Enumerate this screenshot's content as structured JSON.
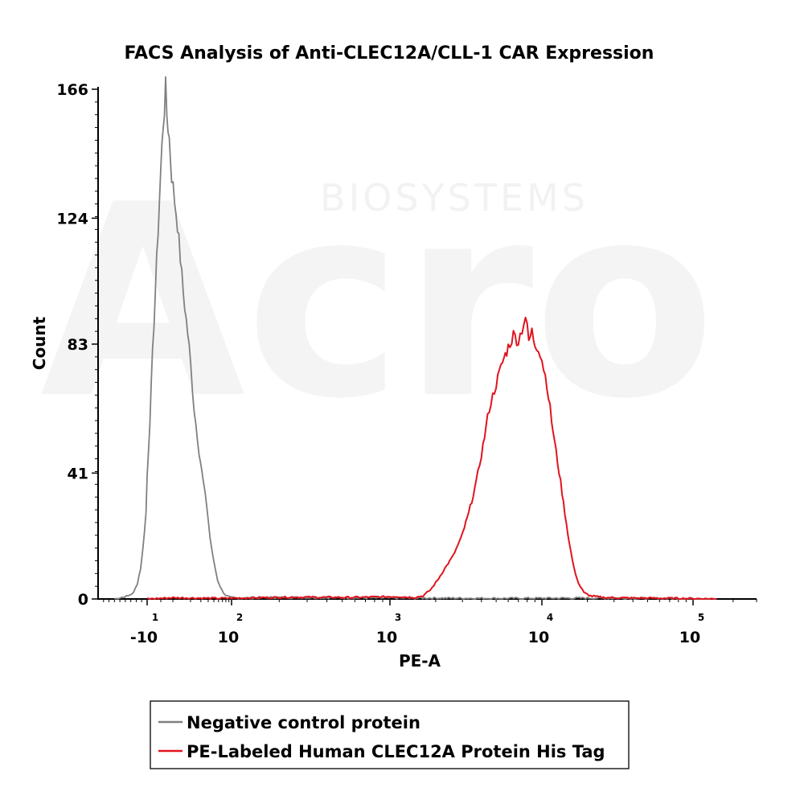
{
  "watermark": {
    "brand": "Acro",
    "sub": "BIOSYSTEMS"
  },
  "chart_data": {
    "type": "line",
    "title": "FACS Analysis of Anti-CLEC12A/CLL-1 CAR Expression",
    "xlabel": "PE-A",
    "ylabel": "Count",
    "x_scale": "biexponential",
    "x_ticks": [
      {
        "base": "-10",
        "exp": "1",
        "value": -10
      },
      {
        "base": "10",
        "exp": "2",
        "value": 100
      },
      {
        "base": "10",
        "exp": "3",
        "value": 1000
      },
      {
        "base": "10",
        "exp": "4",
        "value": 10000
      },
      {
        "base": "10",
        "exp": "5",
        "value": 100000
      }
    ],
    "y_ticks": [
      {
        "label": "0",
        "value": 0
      },
      {
        "label": "41",
        "value": 41
      },
      {
        "label": "83",
        "value": 83
      },
      {
        "label": "124",
        "value": 124
      },
      {
        "label": "166",
        "value": 166
      }
    ],
    "ylim": [
      0,
      166
    ],
    "grid": false,
    "legend_position": "bottom",
    "series": [
      {
        "name": "Negative control protein",
        "color": "#808080",
        "points": [
          [
            -70,
            0
          ],
          [
            -45,
            1
          ],
          [
            -35,
            2
          ],
          [
            -28,
            5
          ],
          [
            -22,
            10
          ],
          [
            -18,
            16
          ],
          [
            -15,
            22
          ],
          [
            -12,
            28
          ],
          [
            -10,
            40
          ],
          [
            -8,
            58
          ],
          [
            -6,
            80
          ],
          [
            -4,
            100
          ],
          [
            -2,
            120
          ],
          [
            0,
            140
          ],
          [
            2,
            155
          ],
          [
            3,
            160
          ],
          [
            4,
            166
          ],
          [
            5,
            158
          ],
          [
            7,
            150
          ],
          [
            9,
            138
          ],
          [
            12,
            122
          ],
          [
            15,
            100
          ],
          [
            19,
            82
          ],
          [
            23,
            62
          ],
          [
            28,
            48
          ],
          [
            33,
            38
          ],
          [
            38,
            30
          ],
          [
            43,
            20
          ],
          [
            50,
            12
          ],
          [
            58,
            6
          ],
          [
            68,
            3
          ],
          [
            80,
            1
          ],
          [
            95,
            0.5
          ],
          [
            110,
            0.3
          ],
          [
            200,
            0.5
          ],
          [
            400,
            0.4
          ],
          [
            800,
            0.3
          ],
          [
            2000,
            0.3
          ],
          [
            5000,
            0.2
          ],
          [
            20000,
            0.3
          ],
          [
            60000,
            0.2
          ],
          [
            150000,
            0
          ]
        ]
      },
      {
        "name": "PE-Labeled Human CLEC12A Protein His Tag",
        "color": "#e0141e",
        "points": [
          [
            -10,
            0
          ],
          [
            10,
            0.4
          ],
          [
            60,
            0.2
          ],
          [
            110,
            0.3
          ],
          [
            250,
            0.6
          ],
          [
            600,
            0.5
          ],
          [
            1100,
            0.8
          ],
          [
            1450,
            0.5
          ],
          [
            1650,
            1
          ],
          [
            1850,
            3
          ],
          [
            2050,
            6
          ],
          [
            2300,
            10
          ],
          [
            2600,
            14
          ],
          [
            2950,
            20
          ],
          [
            3300,
            28
          ],
          [
            3700,
            38
          ],
          [
            4100,
            50
          ],
          [
            4500,
            62
          ],
          [
            5000,
            70
          ],
          [
            5500,
            77
          ],
          [
            6000,
            82
          ],
          [
            6500,
            86
          ],
          [
            7000,
            84
          ],
          [
            7400,
            88
          ],
          [
            7800,
            92
          ],
          [
            8200,
            84
          ],
          [
            8600,
            87
          ],
          [
            9000,
            83
          ],
          [
            9500,
            82
          ],
          [
            10000,
            78
          ],
          [
            10800,
            70
          ],
          [
            11600,
            58
          ],
          [
            12400,
            48
          ],
          [
            13300,
            38
          ],
          [
            14200,
            28
          ],
          [
            15200,
            18
          ],
          [
            16300,
            10
          ],
          [
            17500,
            5
          ],
          [
            19000,
            2
          ],
          [
            21000,
            1
          ],
          [
            25000,
            0.5
          ],
          [
            40000,
            0.3
          ],
          [
            80000,
            0.2
          ],
          [
            150000,
            0
          ]
        ]
      }
    ]
  },
  "legend": {
    "items": [
      {
        "label": "Negative control protein",
        "color": "#808080"
      },
      {
        "label": "PE-Labeled Human CLEC12A Protein His Tag",
        "color": "#e0141e"
      }
    ]
  }
}
